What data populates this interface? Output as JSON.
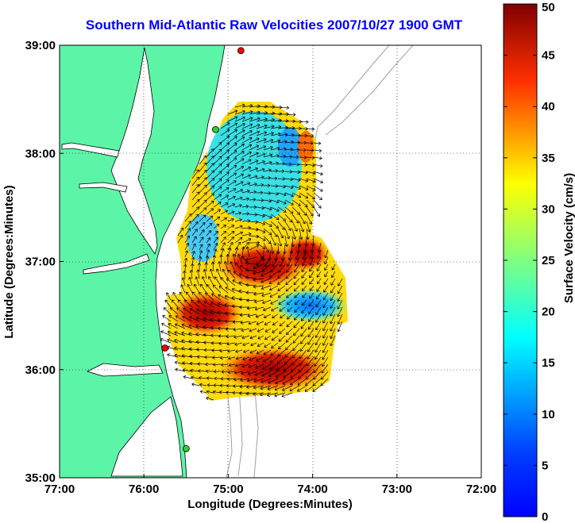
{
  "title": "Southern Mid-Atlantic Raw Velocities 2007/10/27 1900 GMT",
  "map": {
    "xlabel": "Longitude (Degrees:Minutes)",
    "ylabel": "Latitude (Degrees:Minutes)",
    "x_ticks": [
      "77:00",
      "76:00",
      "75:00",
      "74:00",
      "73:00",
      "72:00"
    ],
    "y_ticks": [
      "39:00",
      "38:00",
      "37:00",
      "36:00",
      "35:00"
    ],
    "lon_range": [
      -77,
      -72
    ],
    "lat_range": [
      35,
      39
    ],
    "grid": "dotted",
    "land_color": "#5cf5a8",
    "ocean_color": "#ffffff",
    "coast_color": "#000000",
    "bathymetry_color": "#a0a0a0",
    "radar_sites": [
      {
        "lon": -74.85,
        "lat": 38.95,
        "color": "#ff0000"
      },
      {
        "lon": -75.15,
        "lat": 38.22,
        "color": "#33cc33"
      },
      {
        "lon": -75.75,
        "lat": 36.2,
        "color": "#ff0000"
      },
      {
        "lon": -75.5,
        "lat": 35.27,
        "color": "#33cc33"
      }
    ]
  },
  "colorbar": {
    "label": "Surface Velocity (cm/s)",
    "ticks": [
      "50",
      "45",
      "40",
      "35",
      "30",
      "25",
      "20",
      "15",
      "10",
      "5",
      "0"
    ],
    "range": [
      0,
      50
    ],
    "colormap": "jet"
  },
  "icons": {
    "radar": "radar-site-icon",
    "arrow": "velocity-arrow-icon"
  }
}
